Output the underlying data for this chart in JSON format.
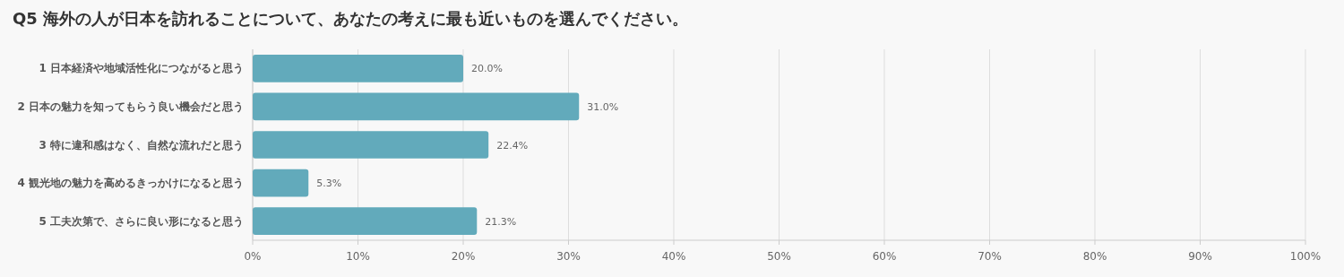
{
  "chart_data": {
    "type": "bar",
    "orientation": "horizontal",
    "title": "Q5 海外の人が日本を訪れることについて、あなたの考えに最も近いものを選んでください。",
    "categories": [
      "1 日本経済や地域活性化につながると思う",
      "2 日本の魅力を知ってもらう良い機会だと思う",
      "3 特に違和感はなく、自然な流れだと思う",
      "4 観光地の魅力を高めるきっかけになると思う",
      "5 工夫次第で、さらに良い形になると思う"
    ],
    "values": [
      20.0,
      31.0,
      22.4,
      5.3,
      21.3
    ],
    "value_labels": [
      "20.0%",
      "31.0%",
      "22.4%",
      "5.3%",
      "21.3%"
    ],
    "color": "#62aabb",
    "xlim": [
      0,
      100
    ],
    "xticks": [
      {
        "value": 0,
        "label": "0%"
      },
      {
        "value": 10,
        "label": "10%"
      },
      {
        "value": 20,
        "label": "20%"
      },
      {
        "value": 30,
        "label": "30%"
      },
      {
        "value": 40,
        "label": "40%"
      },
      {
        "value": 50,
        "label": "50%"
      },
      {
        "value": 60,
        "label": "60%"
      },
      {
        "value": 70,
        "label": "70%"
      },
      {
        "value": 80,
        "label": "80%"
      },
      {
        "value": 90,
        "label": "90%"
      },
      {
        "value": 100,
        "label": "100%"
      }
    ],
    "grid": "x"
  }
}
